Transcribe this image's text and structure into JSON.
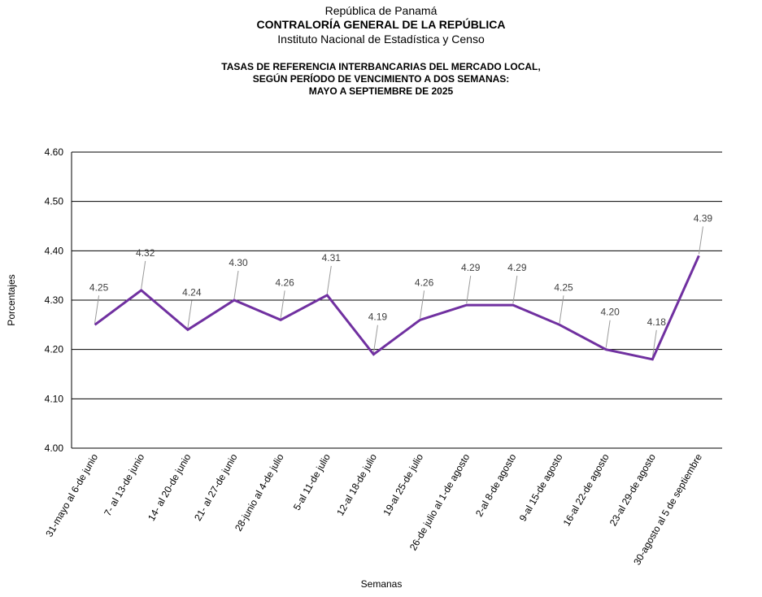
{
  "header": {
    "country": "República de Panamá",
    "organization": "CONTRALORÍA GENERAL DE LA REPÚBLICA",
    "institute": "Instituto Nacional de Estadística y Censo"
  },
  "chart_data": {
    "type": "line",
    "title_lines": [
      "TASAS DE REFERENCIA INTERBANCARIAS DEL MERCADO LOCAL,",
      "SEGÚN PERÍODO DE VENCIMIENTO A DOS SEMANAS:",
      "MAYO A SEPTIEMBRE DE 2025"
    ],
    "xlabel": "Semanas",
    "ylabel": "Porcentajes",
    "ylim": [
      4.0,
      4.6
    ],
    "yticks": [
      "4.00",
      "4.10",
      "4.20",
      "4.30",
      "4.40",
      "4.50",
      "4.60"
    ],
    "grid": true,
    "categories": [
      "31-mayo al 6-de junio",
      "7- al 13-de junio",
      "14- al 20-de junio",
      "21- al 27-de junio",
      "28-junio al 4-de julio",
      "5-al 11-de julio",
      "12-al 18-de julio",
      "19-al 25-de julio",
      "26-de julio al 1-de agosto",
      "2-al 8-de agosto",
      "9-al 15-de agosto",
      "16-al 22-de agosto",
      "23-al 29-de agosto",
      "30-agosto al 5 de septiembre"
    ],
    "series": [
      {
        "values": [
          4.25,
          4.32,
          4.24,
          4.3,
          4.26,
          4.31,
          4.19,
          4.26,
          4.29,
          4.29,
          4.25,
          4.2,
          4.18,
          4.39
        ],
        "labels": [
          "4.25",
          "4.32",
          "4.24",
          "4.30",
          "4.26",
          "4.31",
          "4.19",
          "4.26",
          "4.29",
          "4.29",
          "4.25",
          "4.20",
          "4.18",
          "4.39"
        ],
        "color": "#7030a0"
      }
    ]
  }
}
